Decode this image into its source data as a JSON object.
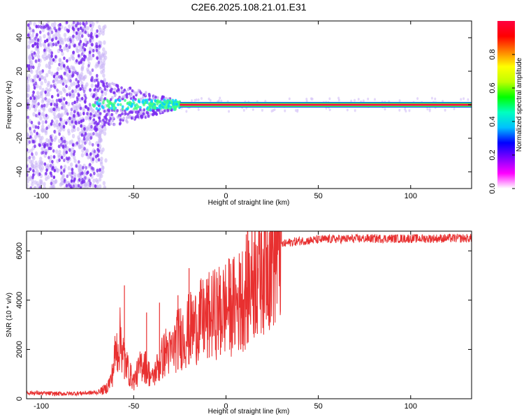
{
  "title": "C2E6.2025.108.21.01.E31",
  "colors": {
    "snr_line": "#e83030",
    "noise_dots": "#7a2cf0",
    "noise_light": "#c9b3f5",
    "axis": "#000000"
  },
  "chart_data": [
    {
      "type": "heatmap",
      "xlabel": "Height of straight line (km)",
      "ylabel": "Frequency (Hz)",
      "xlim": [
        -108,
        133
      ],
      "ylim": [
        -50,
        50
      ],
      "xticks": [
        -100,
        -50,
        0,
        50,
        100
      ],
      "yticks": [
        -40,
        -20,
        0,
        20,
        40
      ],
      "colorbar": {
        "label": "Normalized spectral amplitude",
        "range": [
          0,
          1
        ],
        "ticks": [
          0.0,
          0.2,
          0.4,
          0.6,
          0.8
        ],
        "colormap": [
          "#ffffff",
          "#ff00ff",
          "#8000ff",
          "#0000ff",
          "#00c0ff",
          "#00ffc0",
          "#00ff00",
          "#c0ff00",
          "#ffff00",
          "#ff8000",
          "#ff0000",
          "#ff0040"
        ]
      },
      "signal_line": {
        "frequency_hz": 0,
        "x_from": -25,
        "x_to": 133,
        "amplitude": 0.95
      },
      "noise_region": {
        "x_from": -108,
        "x_to": -68
      },
      "transition_region": {
        "x_from": -72,
        "x_to": -25
      },
      "grid": false
    },
    {
      "type": "line",
      "xlabel": "Height of straight line (km)",
      "ylabel": "SNR (10 * v/v)",
      "xlim": [
        -108,
        133
      ],
      "ylim": [
        0,
        6800
      ],
      "xticks": [
        -100,
        -50,
        0,
        50,
        100
      ],
      "yticks": [
        0,
        2000,
        4000,
        6000
      ],
      "grid": false,
      "series": [
        {
          "x": [
            -108,
            -100,
            -90,
            -80,
            -70,
            -65,
            -62,
            -60,
            -57,
            -55,
            -52,
            -50,
            -47,
            -45,
            -42,
            -40,
            -37,
            -35,
            -32,
            -30,
            -27,
            -25,
            -22,
            -20,
            -17,
            -15,
            -12,
            -10,
            -7,
            -5,
            -2,
            0,
            3,
            5,
            8,
            10,
            13,
            15,
            18,
            20,
            23,
            25,
            28,
            30,
            35,
            40,
            45,
            50,
            55,
            60,
            70,
            80,
            90,
            100,
            110,
            120,
            133
          ],
          "values": [
            250,
            220,
            200,
            220,
            250,
            400,
            800,
            1800,
            2500,
            1600,
            1000,
            700,
            1200,
            1500,
            1100,
            800,
            1300,
            1600,
            2000,
            1800,
            2300,
            2500,
            2600,
            2800,
            2900,
            3100,
            3200,
            3300,
            3400,
            3500,
            3600,
            3700,
            3750,
            3800,
            4000,
            4300,
            4700,
            5000,
            5400,
            5700,
            5900,
            6000,
            6150,
            6250,
            6350,
            6400,
            6420,
            6450,
            6470,
            6480,
            6490,
            6500,
            6500,
            6500,
            6500,
            6510,
            6510
          ],
          "spikes": [
            {
              "x": -55,
              "y": 4600
            },
            {
              "x": -43,
              "y": 3500
            },
            {
              "x": -36,
              "y": 3900
            },
            {
              "x": -26,
              "y": 4200
            },
            {
              "x": -20,
              "y": 5300
            },
            {
              "x": -10,
              "y": 4600
            },
            {
              "x": -3,
              "y": 5000
            },
            {
              "x": 8,
              "y": 5500
            },
            {
              "x": 12,
              "y": 6400
            },
            {
              "x": 17,
              "y": 6200
            }
          ]
        }
      ]
    }
  ]
}
